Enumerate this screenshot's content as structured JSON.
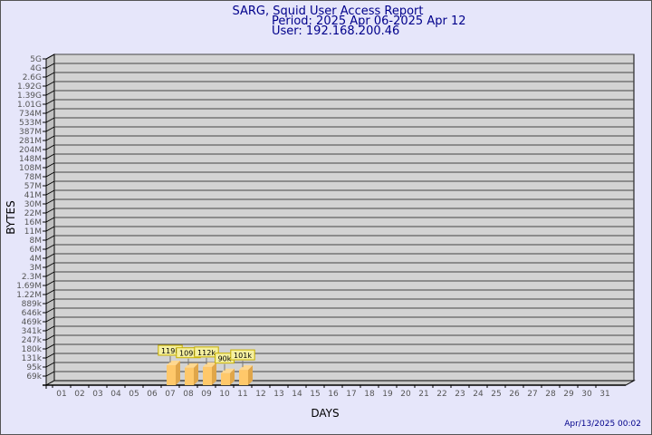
{
  "chart_data": {
    "type": "bar",
    "title": "SARG, Squid User Access Report",
    "subtitle_period": "Period: 2025 Apr 06-2025 Apr 12",
    "subtitle_user": "User: 192.168.200.46",
    "xlabel": "DAYS",
    "ylabel": "BYTES",
    "y_scale": "log",
    "grid": true,
    "categories": [
      "01",
      "02",
      "03",
      "04",
      "05",
      "06",
      "07",
      "08",
      "09",
      "10",
      "11",
      "12",
      "13",
      "14",
      "15",
      "16",
      "17",
      "18",
      "19",
      "20",
      "21",
      "22",
      "23",
      "24",
      "25",
      "26",
      "27",
      "28",
      "29",
      "30",
      "31"
    ],
    "y_tick_labels": [
      "5G",
      "4G",
      "2.6G",
      "1.92G",
      "1.39G",
      "1.01G",
      "734M",
      "533M",
      "387M",
      "281M",
      "204M",
      "148M",
      "108M",
      "78M",
      "57M",
      "41M",
      "30M",
      "22M",
      "16M",
      "11M",
      "8M",
      "6M",
      "4M",
      "3M",
      "2.3M",
      "1.69M",
      "1.22M",
      "889k",
      "646k",
      "469k",
      "341k",
      "247k",
      "180k",
      "131k",
      "95k",
      "69k"
    ],
    "bars": [
      {
        "day": "07",
        "value": 119000,
        "label": "119k"
      },
      {
        "day": "08",
        "value": 109000,
        "label": "109k"
      },
      {
        "day": "09",
        "value": 112000,
        "label": "112k"
      },
      {
        "day": "10",
        "value": 90000,
        "label": "90k"
      },
      {
        "day": "11",
        "value": 101000,
        "label": "101k"
      }
    ],
    "colors": {
      "bar": "#ffc86a",
      "bar_side": "#e0a64a",
      "plot_bg": "#d3d3d3",
      "label_bg": "#f5f0a0",
      "title": "#00008b"
    }
  },
  "footer": {
    "timestamp": "Apr/13/2025 00:02"
  }
}
